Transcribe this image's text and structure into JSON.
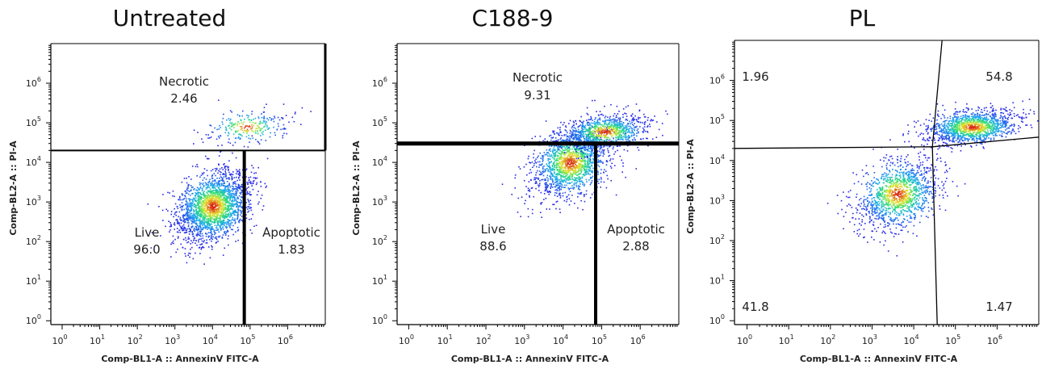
{
  "chart_data": [
    {
      "type": "scatter",
      "title": "Untreated",
      "xlabel": "Comp-BL1-A :: AnnexinV FITC-A",
      "ylabel": "Comp-BL2-A :: PI-A",
      "x_scale": "log",
      "y_scale": "log",
      "xlim": [
        0.5,
        10000000
      ],
      "ylim": [
        0.8,
        10000000
      ],
      "x_tick_labels": [
        "10^0",
        "10^1",
        "10^2",
        "10^3",
        "10^4",
        "10^5",
        "10^6"
      ],
      "y_tick_labels": [
        "10^0",
        "10^1",
        "10^2",
        "10^3",
        "10^4",
        "10^5",
        "10^6"
      ],
      "gates": [
        {
          "name": "Necrotic",
          "percent": "2.46"
        },
        {
          "name": "Live",
          "percent": "96.0"
        },
        {
          "name": "Apoptotic",
          "percent": "1.83"
        }
      ],
      "gate_thresholds": {
        "pi_a": 20000,
        "annexin_v": 70000
      },
      "populations": [
        {
          "center_x": 10000,
          "center_y": 800,
          "count": 2200
        },
        {
          "center_x": 80000,
          "center_y": 80000,
          "count": 250
        }
      ]
    },
    {
      "type": "scatter",
      "title": "C188-9",
      "xlabel": "Comp-BL1-A :: AnnexinV FITC-A",
      "ylabel": "Comp-BL2-A :: PI-A",
      "x_scale": "log",
      "y_scale": "log",
      "xlim": [
        0.5,
        10000000
      ],
      "ylim": [
        0.8,
        10000000
      ],
      "x_tick_labels": [
        "10^0",
        "10^1",
        "10^2",
        "10^3",
        "10^4",
        "10^5",
        "10^6"
      ],
      "y_tick_labels": [
        "10^0",
        "10^1",
        "10^2",
        "10^3",
        "10^4",
        "10^5",
        "10^6"
      ],
      "gates": [
        {
          "name": "Necrotic",
          "percent": "9.31"
        },
        {
          "name": "Live",
          "percent": "88.6"
        },
        {
          "name": "Apoptotic",
          "percent": "2.88"
        }
      ],
      "gate_thresholds": {
        "pi_a": 30000,
        "annexin_v": 70000
      },
      "populations": [
        {
          "center_x": 15000,
          "center_y": 10000,
          "count": 1600
        },
        {
          "center_x": 120000,
          "center_y": 60000,
          "count": 900
        }
      ]
    },
    {
      "type": "scatter",
      "title": "PL",
      "xlabel": "Comp-BL1-A :: AnnexinV FITC-A",
      "ylabel": "Comp-BL2-A :: PI-A",
      "x_scale": "log",
      "y_scale": "log",
      "xlim": [
        0.5,
        10000000
      ],
      "ylim": [
        0.8,
        10000000
      ],
      "x_tick_labels": [
        "10^0",
        "10^1",
        "10^2",
        "10^3",
        "10^4",
        "10^5",
        "10^6"
      ],
      "y_tick_labels": [
        "10^0",
        "10^1",
        "10^2",
        "10^3",
        "10^4",
        "10^5",
        "10^6"
      ],
      "quadrants": [
        {
          "position": "upper-left",
          "percent": "1.96"
        },
        {
          "position": "upper-right",
          "percent": "54.8"
        },
        {
          "position": "lower-left",
          "percent": "41.8"
        },
        {
          "position": "lower-right",
          "percent": "1.47"
        }
      ],
      "gate_thresholds": {
        "pi_a": 22000,
        "annexin_v": 28000
      },
      "populations": [
        {
          "center_x": 4000,
          "center_y": 1500,
          "count": 1300
        },
        {
          "center_x": 250000,
          "center_y": 70000,
          "count": 1300
        }
      ]
    }
  ]
}
